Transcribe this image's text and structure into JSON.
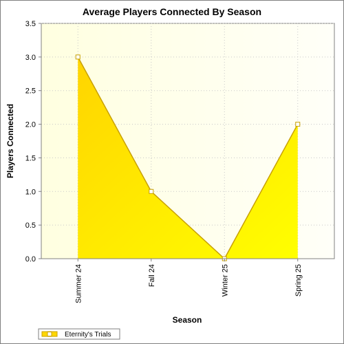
{
  "chart_data": {
    "type": "area",
    "title": "Average Players Connected By Season",
    "xlabel": "Season",
    "ylabel": "Players Connected",
    "categories": [
      "Summer 24",
      "Fall 24",
      "Winter 25",
      "Spring 25"
    ],
    "series": [
      {
        "name": "Eternity's Trials",
        "values": [
          3.0,
          1.0,
          0.0,
          2.0
        ]
      }
    ],
    "ylim": [
      0,
      3.5
    ],
    "yticks": [
      "0.0",
      "0.5",
      "1.0",
      "1.5",
      "2.0",
      "2.5",
      "3.0",
      "3.5"
    ],
    "grid": true,
    "legend": "bottom-left",
    "colors": {
      "fill_top": "#ffd700",
      "fill_bottom": "#ffff00",
      "line": "#c8a000",
      "plot_bg_left": "#ffffe0",
      "plot_bg_right": "#fffff8"
    }
  }
}
